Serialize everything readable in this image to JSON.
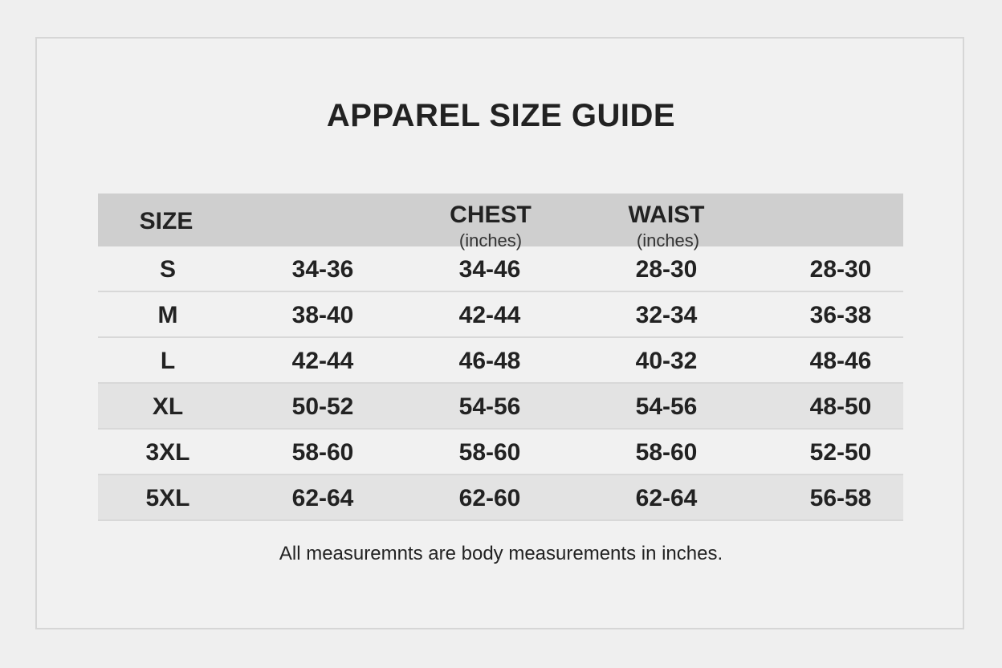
{
  "title": "APPAREL SIZE GUIDE",
  "table": {
    "header": {
      "size": "SIZE",
      "chest": {
        "label": "CHEST",
        "unit": "(inches)"
      },
      "waist": {
        "label": "WAIST",
        "unit": "(inches)"
      }
    },
    "rows": [
      [
        "S",
        "34-36",
        "34-46",
        "28-30",
        "28-30"
      ],
      [
        "M",
        "38-40",
        "42-44",
        "32-34",
        "36-38"
      ],
      [
        "L",
        "42-44",
        "46-48",
        "40-32",
        "48-46"
      ],
      [
        "XL",
        "50-52",
        "54-56",
        "54-56",
        "48-50"
      ],
      [
        "3XL",
        "58-60",
        "58-60",
        "58-60",
        "52-50"
      ],
      [
        "5XL",
        "62-64",
        "62-60",
        "62-64",
        "56-58"
      ]
    ]
  },
  "footnote": "All measuremnts are body measurements in inches."
}
